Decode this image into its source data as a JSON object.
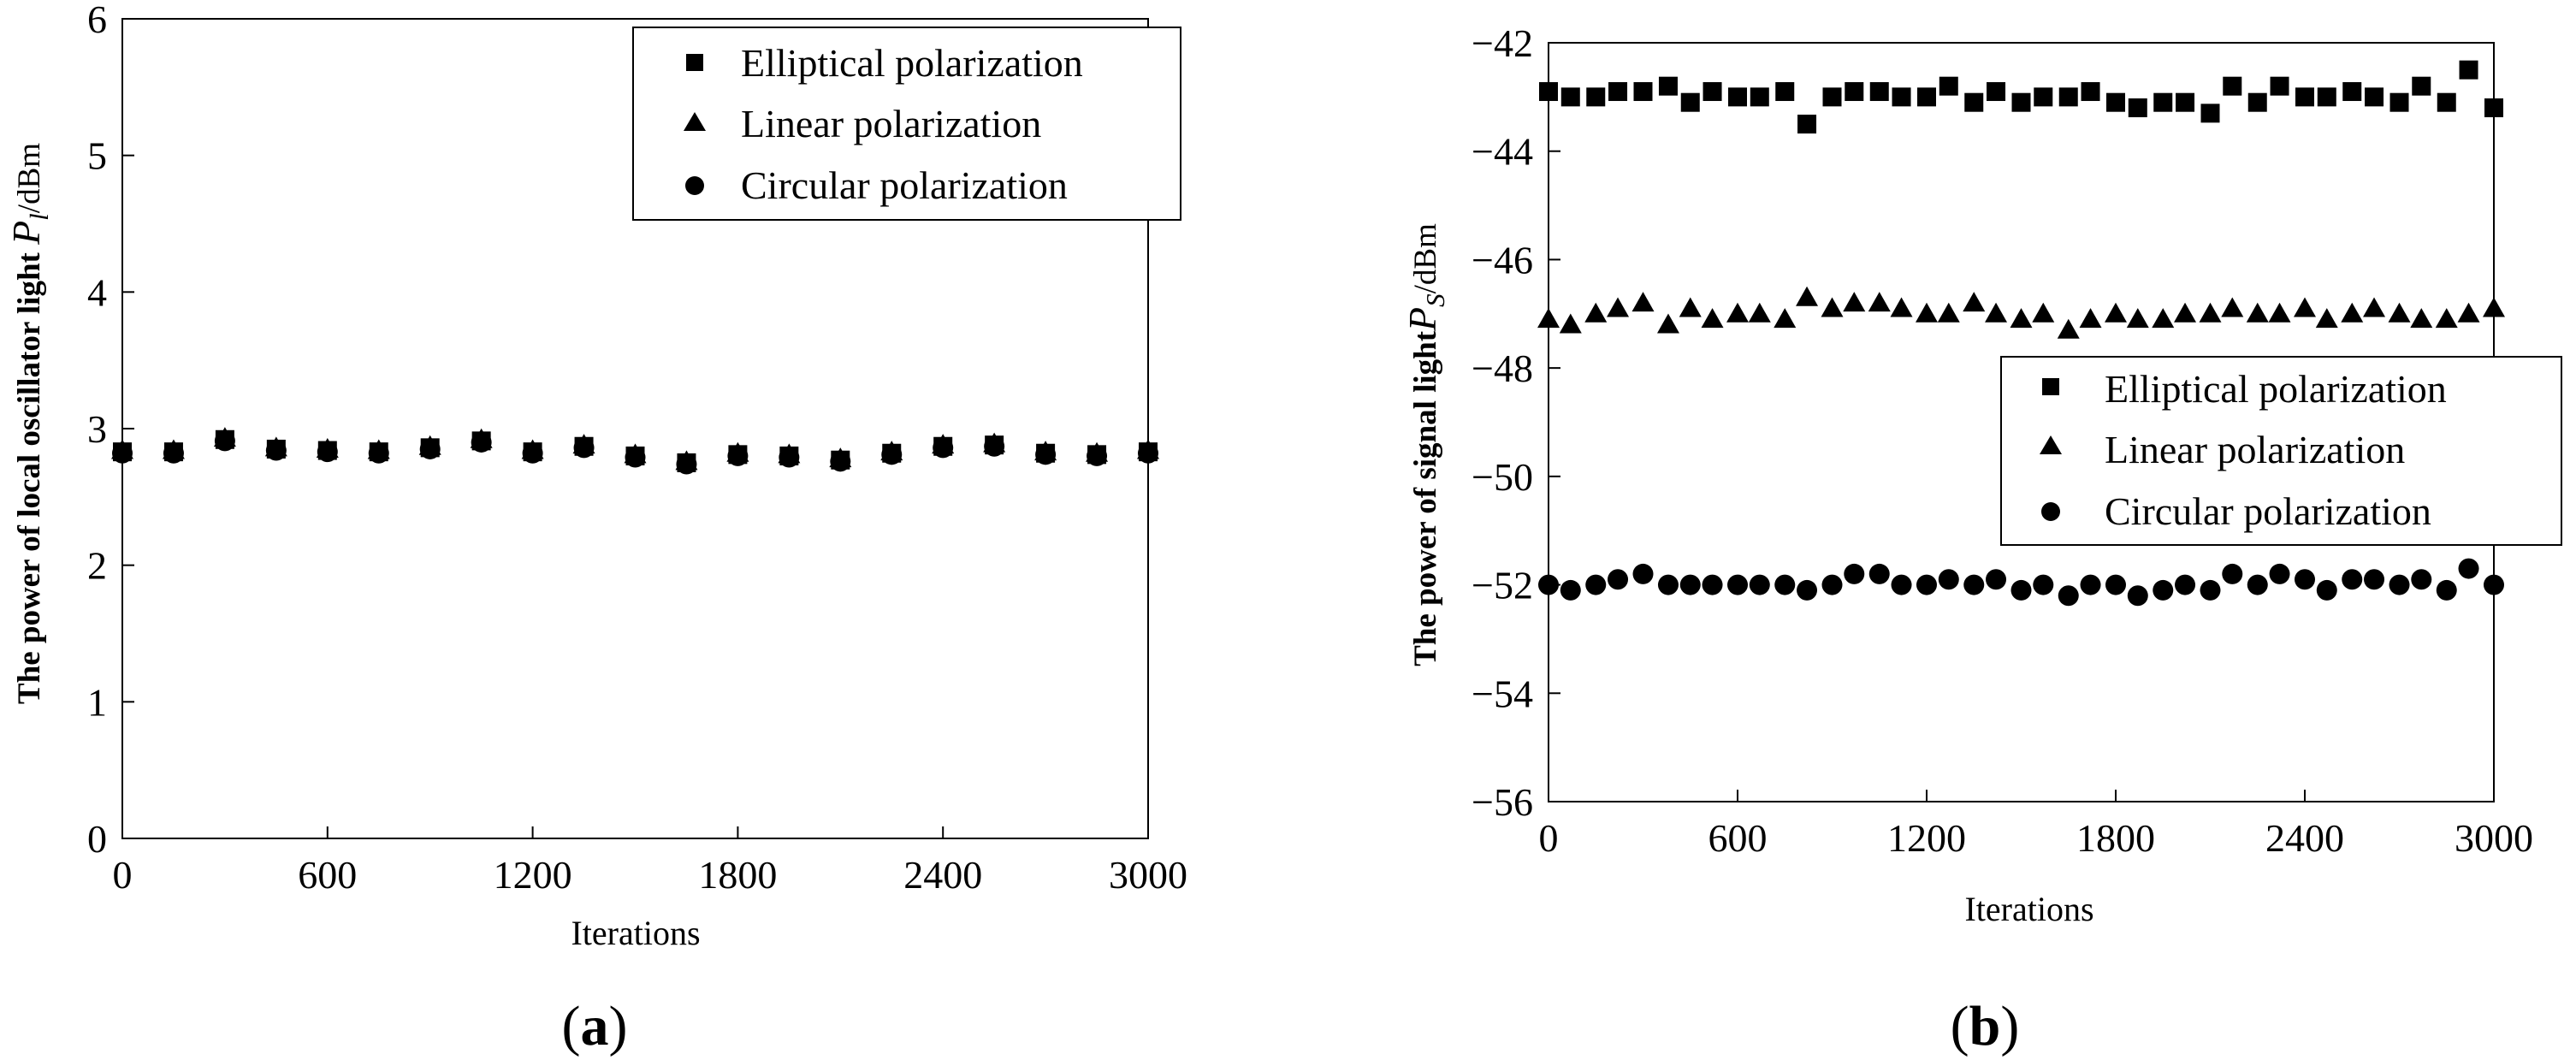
{
  "chart_data": [
    {
      "type": "scatter",
      "panel_label": {
        "open": "(",
        "letter": "a",
        "close": ")"
      },
      "xlabel": "Iterations",
      "ylabel": {
        "prefix": "The power of local oscillator light ",
        "symbol": "P",
        "subscript": "l",
        "unit": "/dBm"
      },
      "xlim": [
        0,
        3000
      ],
      "ylim": [
        0,
        6
      ],
      "xticks": [
        0,
        600,
        1200,
        1800,
        2400,
        3000
      ],
      "yticks": [
        0,
        1,
        2,
        3,
        4,
        5,
        6
      ],
      "legend": {
        "position": "top-right",
        "entries": [
          "Elliptical polarization",
          "Linear polarization",
          "Circular polarization"
        ]
      },
      "x": [
        0,
        150,
        300,
        450,
        600,
        750,
        900,
        1050,
        1200,
        1350,
        1500,
        1650,
        1800,
        1950,
        2100,
        2250,
        2400,
        2550,
        2700,
        2850,
        3000
      ],
      "series": [
        {
          "name": "Elliptical polarization",
          "marker": "square",
          "values": [
            2.83,
            2.83,
            2.92,
            2.85,
            2.84,
            2.83,
            2.86,
            2.91,
            2.83,
            2.87,
            2.8,
            2.75,
            2.81,
            2.8,
            2.77,
            2.82,
            2.87,
            2.88,
            2.82,
            2.81,
            2.83
          ]
        },
        {
          "name": "Linear polarization",
          "marker": "triangle",
          "values": [
            2.84,
            2.84,
            2.93,
            2.86,
            2.85,
            2.84,
            2.87,
            2.92,
            2.84,
            2.88,
            2.81,
            2.76,
            2.82,
            2.81,
            2.78,
            2.83,
            2.88,
            2.89,
            2.83,
            2.82,
            2.84
          ]
        },
        {
          "name": "Circular polarization",
          "marker": "circle",
          "values": [
            2.82,
            2.82,
            2.91,
            2.84,
            2.83,
            2.82,
            2.85,
            2.9,
            2.82,
            2.86,
            2.79,
            2.74,
            2.8,
            2.79,
            2.76,
            2.81,
            2.86,
            2.87,
            2.81,
            2.8,
            2.82
          ]
        }
      ]
    },
    {
      "type": "scatter",
      "panel_label": {
        "open": "(",
        "letter": "b",
        "close": ")"
      },
      "xlabel": "Iterations",
      "ylabel": {
        "prefix": "The power of signal light",
        "symbol": "P",
        "subscript": "S",
        "unit": "/dBm"
      },
      "xlim": [
        0,
        3000
      ],
      "ylim": [
        -56,
        -42
      ],
      "xticks": [
        0,
        600,
        1200,
        1800,
        2400,
        3000
      ],
      "yticks": [
        -56,
        -54,
        -52,
        -50,
        -48,
        -46,
        -44,
        -42
      ],
      "legend": {
        "position": "center-right",
        "entries": [
          "Elliptical polarization",
          "Linear polarization",
          "Circular polarization"
        ]
      },
      "x": [
        0,
        70,
        150,
        220,
        300,
        380,
        450,
        520,
        600,
        670,
        750,
        820,
        900,
        970,
        1050,
        1120,
        1200,
        1270,
        1350,
        1420,
        1500,
        1570,
        1650,
        1720,
        1800,
        1870,
        1950,
        2020,
        2100,
        2170,
        2250,
        2320,
        2400,
        2470,
        2550,
        2620,
        2700,
        2770,
        2850,
        2920,
        3000
      ],
      "series": [
        {
          "name": "Elliptical polarization",
          "marker": "square",
          "values": [
            -42.9,
            -43.0,
            -43.0,
            -42.9,
            -42.9,
            -42.8,
            -43.1,
            -42.9,
            -43.0,
            -43.0,
            -42.9,
            -43.5,
            -43.0,
            -42.9,
            -42.9,
            -43.0,
            -43.0,
            -42.8,
            -43.1,
            -42.9,
            -43.1,
            -43.0,
            -43.0,
            -42.9,
            -43.1,
            -43.2,
            -43.1,
            -43.1,
            -43.3,
            -42.8,
            -43.1,
            -42.8,
            -43.0,
            -43.0,
            -42.9,
            -43.0,
            -43.1,
            -42.8,
            -43.1,
            -42.5,
            -43.2
          ]
        },
        {
          "name": "Linear polarization",
          "marker": "triangle",
          "values": [
            -47.1,
            -47.2,
            -47.0,
            -46.9,
            -46.8,
            -47.2,
            -46.9,
            -47.1,
            -47.0,
            -47.0,
            -47.1,
            -46.7,
            -46.9,
            -46.8,
            -46.8,
            -46.9,
            -47.0,
            -47.0,
            -46.8,
            -47.0,
            -47.1,
            -47.0,
            -47.3,
            -47.1,
            -47.0,
            -47.1,
            -47.1,
            -47.0,
            -47.0,
            -46.9,
            -47.0,
            -47.0,
            -46.9,
            -47.1,
            -47.0,
            -46.9,
            -47.0,
            -47.1,
            -47.1,
            -47.0,
            -46.9
          ]
        },
        {
          "name": "Circular polarization",
          "marker": "circle",
          "values": [
            -52.0,
            -52.1,
            -52.0,
            -51.9,
            -51.8,
            -52.0,
            -52.0,
            -52.0,
            -52.0,
            -52.0,
            -52.0,
            -52.1,
            -52.0,
            -51.8,
            -51.8,
            -52.0,
            -52.0,
            -51.9,
            -52.0,
            -51.9,
            -52.1,
            -52.0,
            -52.2,
            -52.0,
            -52.0,
            -52.2,
            -52.1,
            -52.0,
            -52.1,
            -51.8,
            -52.0,
            -51.8,
            -51.9,
            -52.1,
            -51.9,
            -51.9,
            -52.0,
            -51.9,
            -52.1,
            -51.7,
            -52.0
          ]
        }
      ]
    }
  ]
}
